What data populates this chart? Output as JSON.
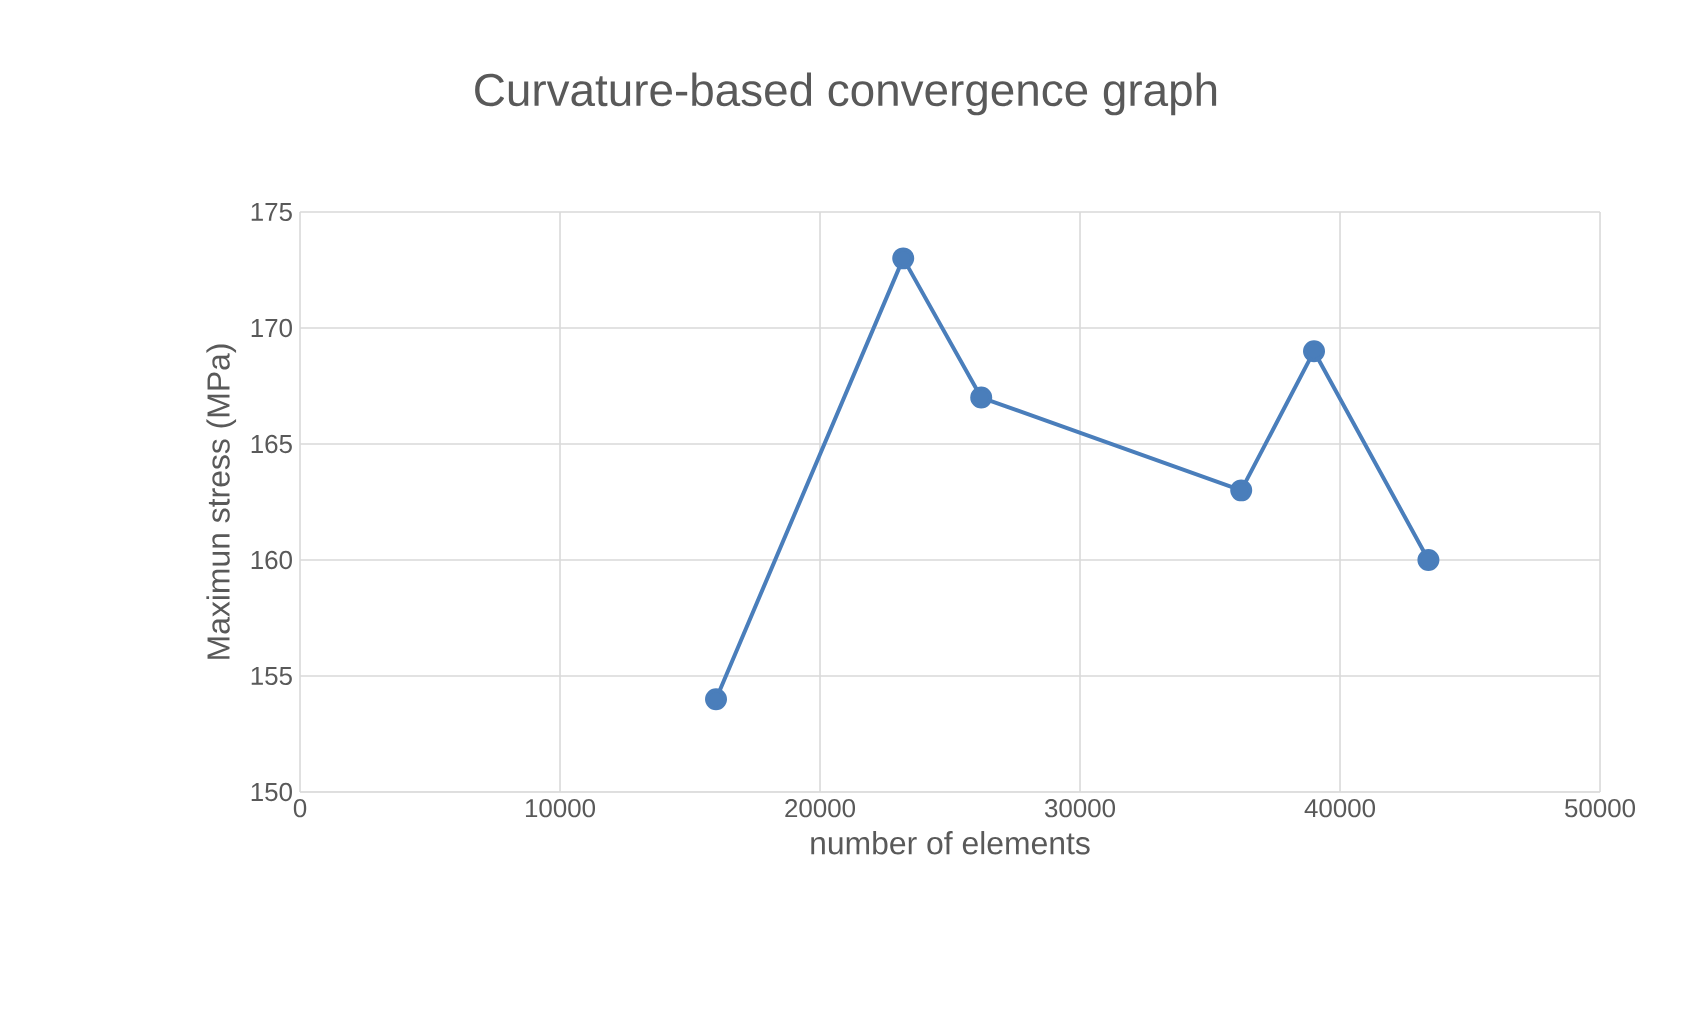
{
  "chart_data": {
    "type": "line",
    "title": "Curvature-based convergence graph",
    "xlabel": "number of elements",
    "ylabel": "Maximun stress (MPa)",
    "x": [
      16000,
      23200,
      26200,
      36200,
      39000,
      43400
    ],
    "series": [
      {
        "color": "#4a7ebb",
        "values": [
          154,
          173,
          167,
          163,
          169,
          160
        ]
      }
    ],
    "xlim": [
      0,
      50000
    ],
    "xticks": [
      0,
      10000,
      20000,
      30000,
      40000,
      50000
    ],
    "ylim": [
      150,
      175
    ],
    "yticks": [
      150,
      155,
      160,
      165,
      170,
      175
    ],
    "grid": true,
    "legend": false,
    "marker": "circle",
    "line_style": "solid"
  }
}
